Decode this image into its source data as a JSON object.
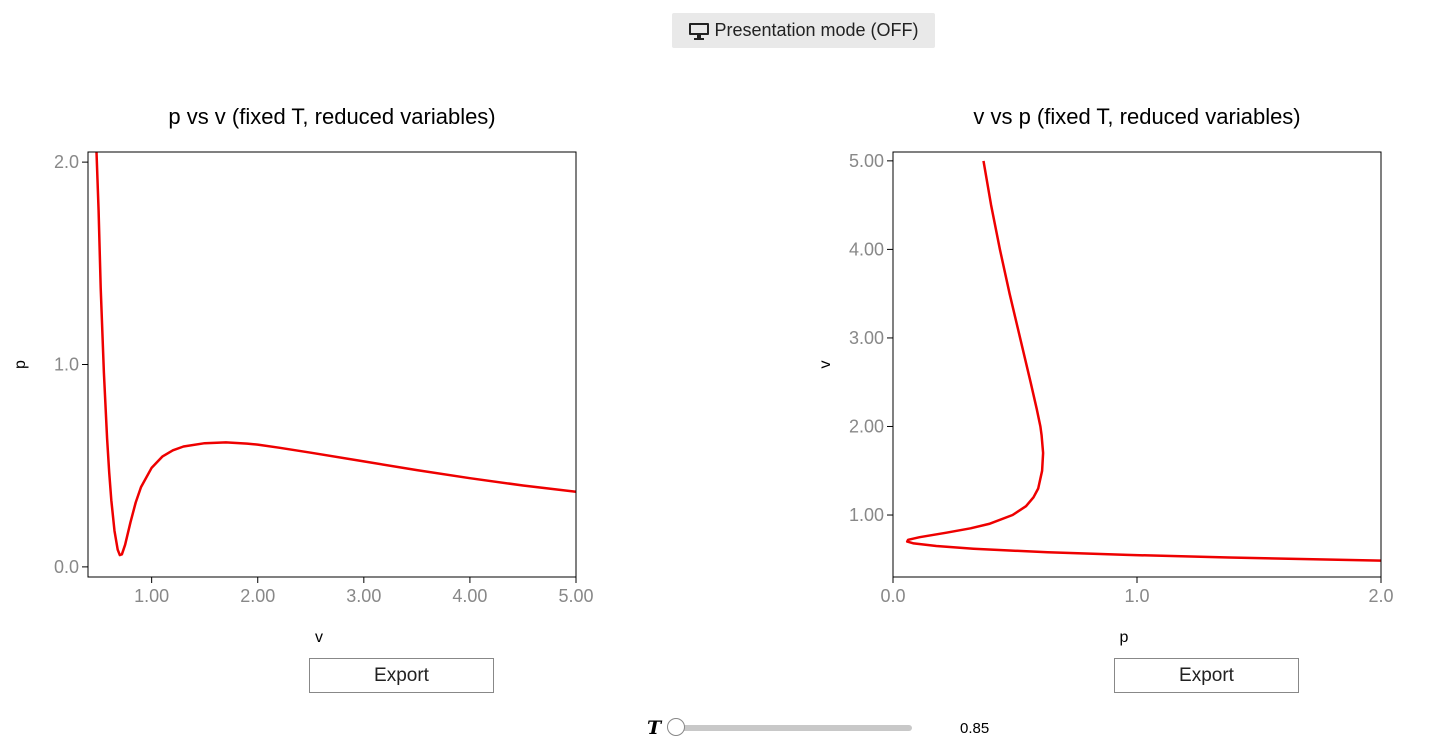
{
  "toolbar": {
    "presentation_label": "Presentation mode (OFF)",
    "presentation_icon": "monitor-icon"
  },
  "slider": {
    "label": "T",
    "value": "0.85",
    "fraction": 0.0
  },
  "colors": {
    "curve": "#ee0000",
    "tick_text": "#888888",
    "button_bg": "#e9e9e9"
  },
  "charts": [
    {
      "id": "pv",
      "export_label": "Export"
    },
    {
      "id": "vp",
      "export_label": "Export"
    }
  ],
  "chart_data": [
    {
      "type": "line",
      "title": "p vs v (fixed T, reduced variables)",
      "xlabel": "v",
      "ylabel": "p",
      "xlim": [
        0.4,
        5.0
      ],
      "ylim": [
        -0.05,
        2.05
      ],
      "xticks": [
        "1.00",
        "2.00",
        "3.00",
        "4.00",
        "5.00"
      ],
      "yticks": [
        "0.0",
        "1.0",
        "2.0"
      ],
      "grid": false,
      "series": [
        {
          "x": [
            0.48,
            0.5,
            0.52,
            0.55,
            0.58,
            0.6,
            0.62,
            0.65,
            0.68,
            0.7,
            0.72,
            0.75,
            0.8,
            0.85,
            0.9,
            1.0,
            1.1,
            1.2,
            1.3,
            1.5,
            1.7,
            1.9,
            2.0,
            2.2,
            2.5,
            3.0,
            3.5,
            4.0,
            4.5,
            5.0
          ],
          "y": [
            2.05,
            1.76,
            1.378,
            0.959,
            0.634,
            0.467,
            0.33,
            0.178,
            0.085,
            0.058,
            0.062,
            0.109,
            0.219,
            0.318,
            0.394,
            0.49,
            0.545,
            0.576,
            0.595,
            0.611,
            0.615,
            0.609,
            0.604,
            0.589,
            0.564,
            0.521,
            0.478,
            0.438,
            0.402,
            0.371
          ]
        }
      ]
    },
    {
      "type": "line",
      "title": "v vs p (fixed T, reduced variables)",
      "xlabel": "p",
      "ylabel": "v",
      "xlim": [
        0.0,
        2.0
      ],
      "ylim": [
        0.3,
        5.1
      ],
      "xticks": [
        "0.0",
        "1.0",
        "2.0"
      ],
      "yticks": [
        "1.00",
        "2.00",
        "3.00",
        "4.00",
        "5.00"
      ],
      "grid": false,
      "series": [
        {
          "x": [
            0.371,
            0.402,
            0.438,
            0.478,
            0.521,
            0.564,
            0.589,
            0.604,
            0.609,
            0.615,
            0.611,
            0.595,
            0.576,
            0.545,
            0.49,
            0.394,
            0.318,
            0.219,
            0.109,
            0.062,
            0.058,
            0.085,
            0.178,
            0.33,
            0.467,
            0.634,
            0.959,
            1.378,
            2.0
          ],
          "y": [
            5.0,
            4.5,
            4.0,
            3.5,
            3.0,
            2.5,
            2.2,
            2.0,
            1.9,
            1.7,
            1.5,
            1.3,
            1.2,
            1.1,
            1.0,
            0.9,
            0.85,
            0.8,
            0.75,
            0.72,
            0.7,
            0.68,
            0.65,
            0.62,
            0.6,
            0.58,
            0.55,
            0.52,
            0.485
          ]
        }
      ]
    }
  ]
}
